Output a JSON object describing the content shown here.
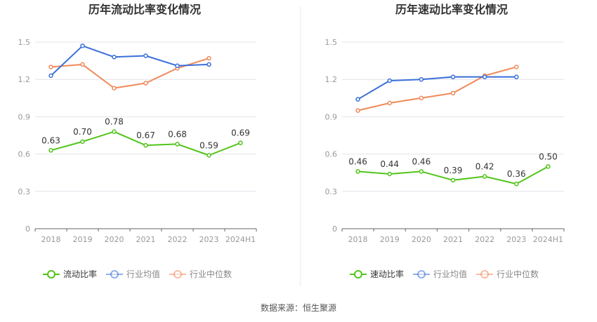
{
  "source": "数据来源：恒生聚源",
  "chart_data": [
    {
      "type": "line",
      "title": "历年流动比率变化情况",
      "categories": [
        "2018",
        "2019",
        "2020",
        "2021",
        "2022",
        "2023",
        "2024H1"
      ],
      "ylim": [
        0,
        1.5
      ],
      "yticks": [
        "0",
        "0.3",
        "0.6",
        "0.9",
        "1.2",
        "1.5"
      ],
      "grid": "horizontal",
      "legend_position": "bottom",
      "series": [
        {
          "name": "流动比率",
          "color": "#52c41a",
          "labeled": true,
          "values": [
            0.63,
            0.7,
            0.78,
            0.67,
            0.68,
            0.59,
            0.69
          ],
          "labels": [
            "0.63",
            "0.70",
            "0.78",
            "0.67",
            "0.68",
            "0.59",
            "0.69"
          ]
        },
        {
          "name": "行业均值",
          "color": "#3a6fd8",
          "labeled": false,
          "values": [
            1.23,
            1.47,
            1.38,
            1.39,
            1.31,
            1.32,
            null
          ]
        },
        {
          "name": "行业中位数",
          "color": "#f0895a",
          "labeled": false,
          "values": [
            1.3,
            1.32,
            1.13,
            1.17,
            1.29,
            1.37,
            null
          ]
        }
      ]
    },
    {
      "type": "line",
      "title": "历年速动比率变化情况",
      "categories": [
        "2018",
        "2019",
        "2020",
        "2021",
        "2022",
        "2023",
        "2024H1"
      ],
      "ylim": [
        0,
        1.5
      ],
      "yticks": [
        "0",
        "0.3",
        "0.6",
        "0.9",
        "1.2",
        "1.5"
      ],
      "grid": "horizontal",
      "legend_position": "bottom",
      "series": [
        {
          "name": "速动比率",
          "color": "#52c41a",
          "labeled": true,
          "values": [
            0.46,
            0.44,
            0.46,
            0.39,
            0.42,
            0.36,
            0.5
          ],
          "labels": [
            "0.46",
            "0.44",
            "0.46",
            "0.39",
            "0.42",
            "0.36",
            "0.50"
          ]
        },
        {
          "name": "行业均值",
          "color": "#3a6fd8",
          "labeled": false,
          "values": [
            1.04,
            1.19,
            1.2,
            1.22,
            1.22,
            1.22,
            null
          ]
        },
        {
          "name": "行业中位数",
          "color": "#f0895a",
          "labeled": false,
          "values": [
            0.95,
            1.01,
            1.05,
            1.09,
            1.23,
            1.3,
            null
          ]
        }
      ]
    }
  ]
}
